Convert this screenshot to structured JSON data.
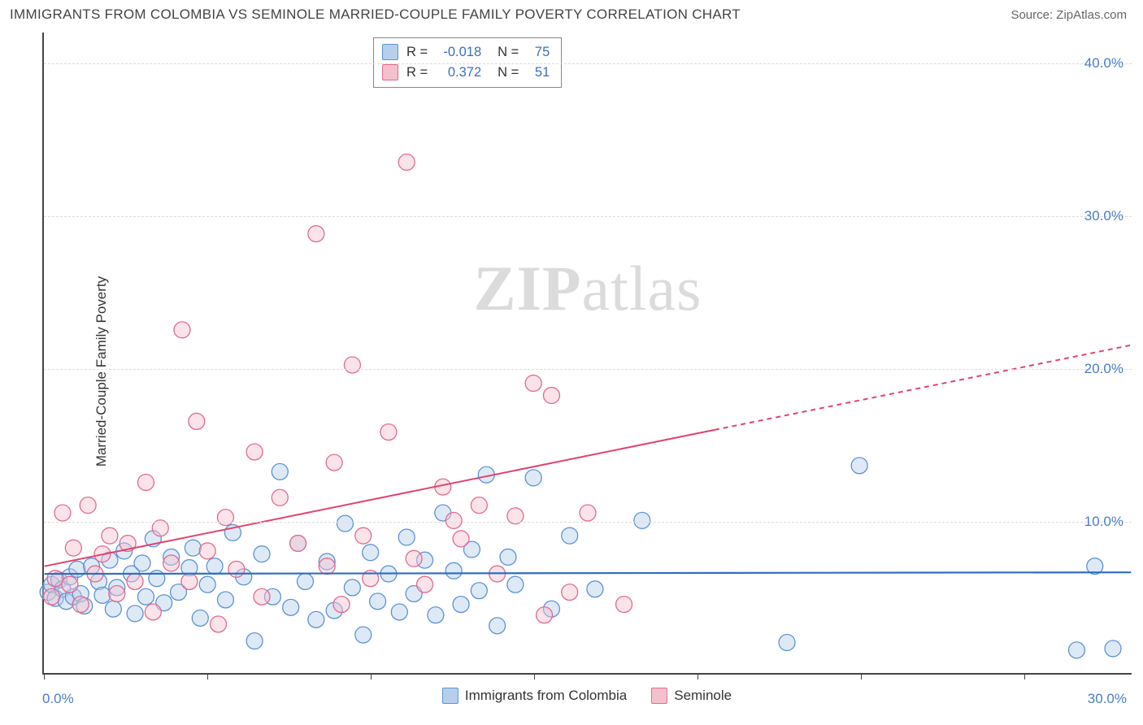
{
  "header": {
    "title": "IMMIGRANTS FROM COLOMBIA VS SEMINOLE MARRIED-COUPLE FAMILY POVERTY CORRELATION CHART",
    "source": "Source: ZipAtlas.com"
  },
  "axes": {
    "y_label": "Married-Couple Family Poverty",
    "x_min_label": "0.0%",
    "x_max_label": "30.0%",
    "xlim": [
      0,
      30
    ],
    "ylim": [
      0,
      42
    ],
    "y_ticks": [
      {
        "value": 10,
        "label": "10.0%"
      },
      {
        "value": 20,
        "label": "20.0%"
      },
      {
        "value": 30,
        "label": "30.0%"
      },
      {
        "value": 40,
        "label": "40.0%"
      }
    ],
    "x_tick_values": [
      0,
      4.5,
      9,
      13.5,
      18,
      22.5,
      27
    ],
    "grid_color": "#dddddd",
    "axis_color": "#444444",
    "tick_label_color": "#4a7ec9",
    "tick_fontsize": 17,
    "label_fontsize": 17
  },
  "stats_box": {
    "rows": [
      {
        "swatch_fill": "#b6cfeb",
        "swatch_stroke": "#5d93d6",
        "r_label": "R =",
        "r_value": "-0.018",
        "n_label": "N =",
        "n_value": "75"
      },
      {
        "swatch_fill": "#f3c1ce",
        "swatch_stroke": "#e46a8d",
        "r_label": "R =",
        "r_value": "0.372",
        "n_label": "N =",
        "n_value": "51"
      }
    ]
  },
  "legend": {
    "series": [
      {
        "name": "Immigrants from Colombia",
        "fill": "#b6cfeb",
        "stroke": "#5d93d6"
      },
      {
        "name": "Seminole",
        "fill": "#f3c1ce",
        "stroke": "#e46a8d"
      }
    ]
  },
  "watermark": {
    "prefix": "ZIP",
    "suffix": "atlas"
  },
  "chart": {
    "type": "scatter",
    "background": "#ffffff",
    "marker_radius": 10,
    "marker_fill_opacity": 0.45,
    "marker_stroke_width": 1.3,
    "series": [
      {
        "key": "colombia",
        "fill": "#b6cfeb",
        "stroke": "#5d93d6",
        "points": [
          [
            0.1,
            5.3
          ],
          [
            0.2,
            5.8
          ],
          [
            0.3,
            4.9
          ],
          [
            0.4,
            6.1
          ],
          [
            0.5,
            5.5
          ],
          [
            0.6,
            4.7
          ],
          [
            0.7,
            6.3
          ],
          [
            0.8,
            5.0
          ],
          [
            0.9,
            6.8
          ],
          [
            1.0,
            5.2
          ],
          [
            1.1,
            4.4
          ],
          [
            1.3,
            7.0
          ],
          [
            1.5,
            6.0
          ],
          [
            1.6,
            5.1
          ],
          [
            1.8,
            7.4
          ],
          [
            1.9,
            4.2
          ],
          [
            2.0,
            5.6
          ],
          [
            2.2,
            8.0
          ],
          [
            2.4,
            6.5
          ],
          [
            2.5,
            3.9
          ],
          [
            2.7,
            7.2
          ],
          [
            2.8,
            5.0
          ],
          [
            3.0,
            8.8
          ],
          [
            3.1,
            6.2
          ],
          [
            3.3,
            4.6
          ],
          [
            3.5,
            7.6
          ],
          [
            3.7,
            5.3
          ],
          [
            4.0,
            6.9
          ],
          [
            4.1,
            8.2
          ],
          [
            4.3,
            3.6
          ],
          [
            4.5,
            5.8
          ],
          [
            4.7,
            7.0
          ],
          [
            5.0,
            4.8
          ],
          [
            5.2,
            9.2
          ],
          [
            5.5,
            6.3
          ],
          [
            5.8,
            2.1
          ],
          [
            6.0,
            7.8
          ],
          [
            6.3,
            5.0
          ],
          [
            6.5,
            13.2
          ],
          [
            6.8,
            4.3
          ],
          [
            7.0,
            8.5
          ],
          [
            7.2,
            6.0
          ],
          [
            7.5,
            3.5
          ],
          [
            7.8,
            7.3
          ],
          [
            8.0,
            4.1
          ],
          [
            8.3,
            9.8
          ],
          [
            8.5,
            5.6
          ],
          [
            8.8,
            2.5
          ],
          [
            9.0,
            7.9
          ],
          [
            9.2,
            4.7
          ],
          [
            9.5,
            6.5
          ],
          [
            9.8,
            4.0
          ],
          [
            10.0,
            8.9
          ],
          [
            10.2,
            5.2
          ],
          [
            10.5,
            7.4
          ],
          [
            10.8,
            3.8
          ],
          [
            11.0,
            10.5
          ],
          [
            11.3,
            6.7
          ],
          [
            11.5,
            4.5
          ],
          [
            11.8,
            8.1
          ],
          [
            12.0,
            5.4
          ],
          [
            12.2,
            13.0
          ],
          [
            12.5,
            3.1
          ],
          [
            12.8,
            7.6
          ],
          [
            13.0,
            5.8
          ],
          [
            13.5,
            12.8
          ],
          [
            14.0,
            4.2
          ],
          [
            14.5,
            9.0
          ],
          [
            15.2,
            5.5
          ],
          [
            16.5,
            10.0
          ],
          [
            20.5,
            2.0
          ],
          [
            22.5,
            13.6
          ],
          [
            28.5,
            1.5
          ],
          [
            29.5,
            1.6
          ],
          [
            29.0,
            7.0
          ]
        ],
        "trend": {
          "x1": 0,
          "y1": 6.5,
          "x2": 30,
          "y2": 6.6,
          "color": "#2f6dc2",
          "width": 2.2,
          "solid_until_x": 30
        }
      },
      {
        "key": "seminole",
        "fill": "#f3c1ce",
        "stroke": "#e46a8d",
        "points": [
          [
            0.2,
            5.0
          ],
          [
            0.3,
            6.2
          ],
          [
            0.5,
            10.5
          ],
          [
            0.7,
            5.8
          ],
          [
            0.8,
            8.2
          ],
          [
            1.0,
            4.5
          ],
          [
            1.2,
            11.0
          ],
          [
            1.4,
            6.5
          ],
          [
            1.6,
            7.8
          ],
          [
            1.8,
            9.0
          ],
          [
            2.0,
            5.2
          ],
          [
            2.3,
            8.5
          ],
          [
            2.5,
            6.0
          ],
          [
            2.8,
            12.5
          ],
          [
            3.0,
            4.0
          ],
          [
            3.2,
            9.5
          ],
          [
            3.5,
            7.2
          ],
          [
            3.8,
            22.5
          ],
          [
            4.0,
            6.0
          ],
          [
            4.2,
            16.5
          ],
          [
            4.5,
            8.0
          ],
          [
            4.8,
            3.2
          ],
          [
            5.0,
            10.2
          ],
          [
            5.3,
            6.8
          ],
          [
            5.8,
            14.5
          ],
          [
            6.0,
            5.0
          ],
          [
            6.5,
            11.5
          ],
          [
            7.0,
            8.5
          ],
          [
            7.5,
            28.8
          ],
          [
            7.8,
            7.0
          ],
          [
            8.0,
            13.8
          ],
          [
            8.2,
            4.5
          ],
          [
            8.5,
            20.2
          ],
          [
            8.8,
            9.0
          ],
          [
            9.0,
            6.2
          ],
          [
            9.5,
            15.8
          ],
          [
            10.0,
            33.5
          ],
          [
            10.2,
            7.5
          ],
          [
            10.5,
            5.8
          ],
          [
            11.0,
            12.2
          ],
          [
            11.3,
            10.0
          ],
          [
            11.5,
            8.8
          ],
          [
            12.0,
            11.0
          ],
          [
            12.5,
            6.5
          ],
          [
            13.0,
            10.3
          ],
          [
            13.5,
            19.0
          ],
          [
            14.0,
            18.2
          ],
          [
            14.5,
            5.3
          ],
          [
            16.0,
            4.5
          ],
          [
            15.0,
            10.5
          ],
          [
            13.8,
            3.8
          ]
        ],
        "trend": {
          "x1": 0,
          "y1": 7.0,
          "x2": 30,
          "y2": 21.5,
          "color": "#e0446e",
          "width": 2.0,
          "solid_until_x": 18.5
        }
      }
    ]
  }
}
